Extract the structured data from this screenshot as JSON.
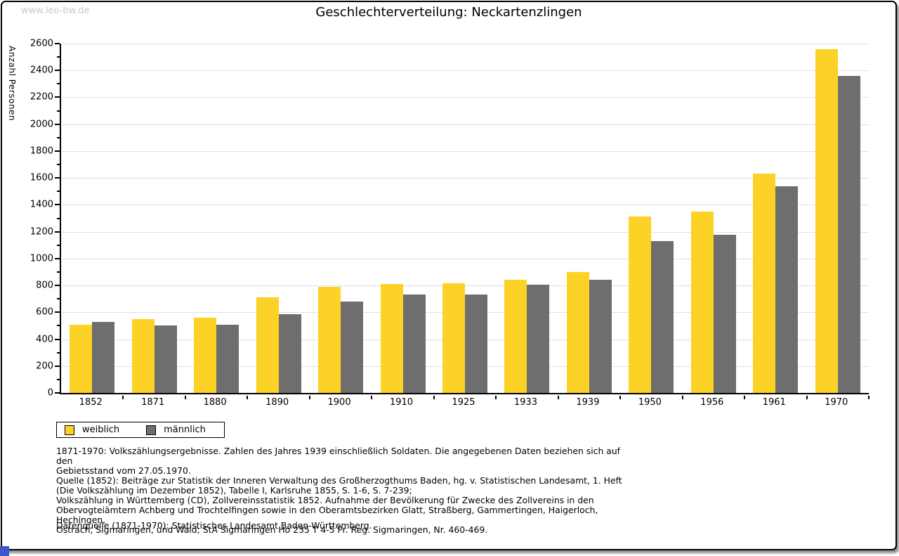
{
  "watermark": "www.leo-bw.de",
  "title": "Geschlechterverteilung: Neckartenzlingen",
  "chart_data": {
    "type": "bar",
    "title": "Geschlechterverteilung: Neckartenzlingen",
    "ylabel": "Anzahl Personen",
    "xlabel": "",
    "categories": [
      "1852",
      "1871",
      "1880",
      "1890",
      "1900",
      "1910",
      "1925",
      "1933",
      "1939",
      "1950",
      "1956",
      "1961",
      "1970"
    ],
    "series": [
      {
        "name": "weiblich",
        "color": "#fcd226",
        "values": [
          510,
          550,
          560,
          710,
          790,
          810,
          815,
          840,
          900,
          1315,
          1350,
          1630,
          2560
        ]
      },
      {
        "name": "männlich",
        "color": "#6e6e6e",
        "values": [
          530,
          500,
          510,
          585,
          680,
          730,
          730,
          805,
          840,
          1130,
          1175,
          1540,
          2360
        ]
      }
    ],
    "ylim": [
      0,
      2600
    ],
    "ytick_step": 200,
    "minor_tick_step": 100,
    "grid": true,
    "gridline_color": "#e0e0e0",
    "legend_position": "bottom-left"
  },
  "footnotes": [
    "1871-1970: Volkszählungsergebnisse. Zahlen des Jahres 1939 einschließlich Soldaten. Die angegebenen Daten beziehen sich auf den",
    "Gebietsstand vom 27.05.1970.",
    "Quelle (1852): Beiträge zur Statistik der Inneren Verwaltung des Großherzogthums Baden, hg. v. Statistischen Landesamt, 1. Heft",
    "(Die Volkszählung im Dezember 1852), Tabelle I, Karlsruhe 1855, S. 1-6, S. 7-239;",
    "Volkszählung in Württemberg (CD), Zollvereinsstatistik 1852. Aufnahme der Bevölkerung für Zwecke des Zollvereins in den",
    "Obervogteiämtern Achberg und Trochtelfingen sowie in den Oberamtsbezirken Glatt, Straßberg, Gammertingen, Haigerloch, Hechingen,",
    "Ostrach, Sigmaringen, und Wald; StA Sigmaringen Ho 235 T 4-5 Pr. Reg. Sigmaringen, Nr. 460-469."
  ],
  "datasource": "Datenquelle (1871-1970): Statistisches Landesamt Baden-Württemberg.",
  "colors": {
    "frame_border": "#000000",
    "watermark": "#c9c9c9",
    "corner_badge": "#3c55c8"
  }
}
